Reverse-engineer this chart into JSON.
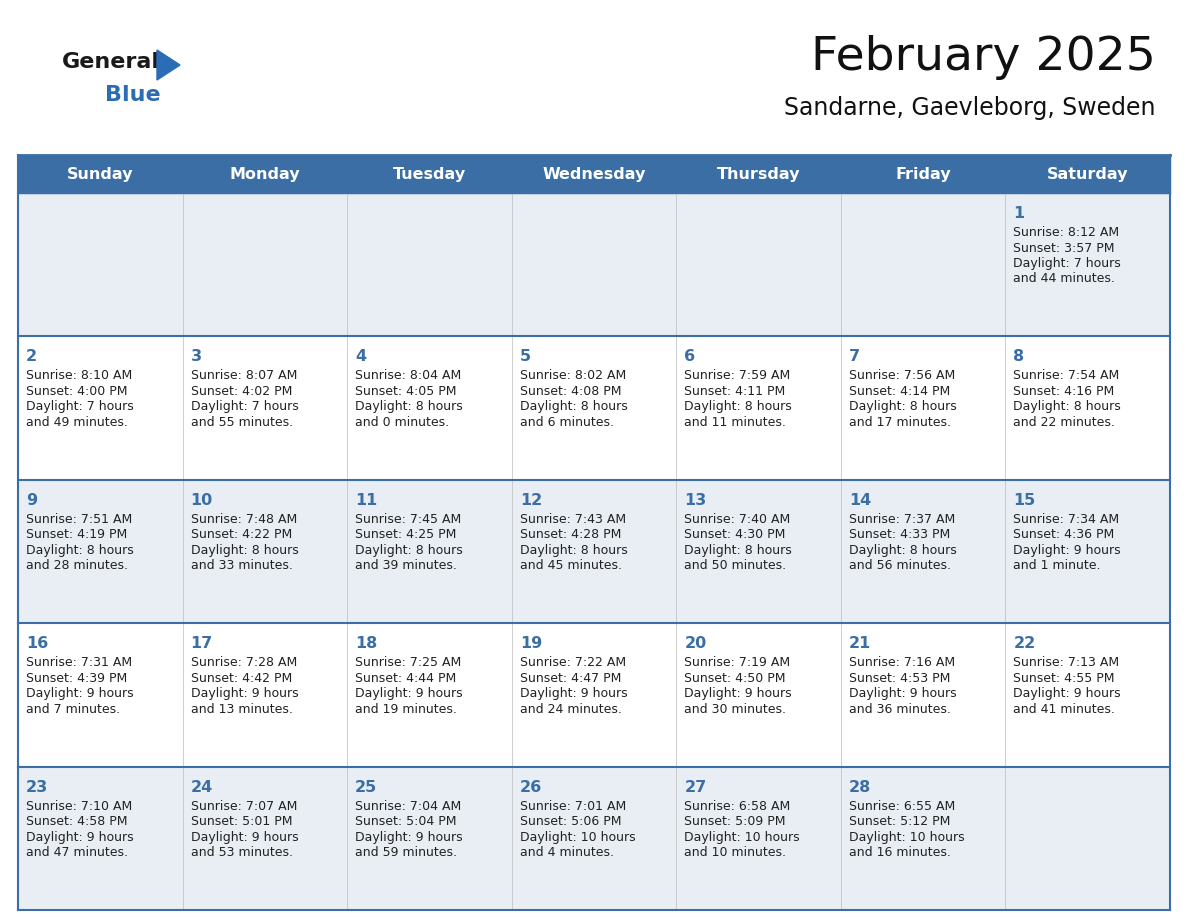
{
  "title": "February 2025",
  "subtitle": "Sandarne, Gaevleborg, Sweden",
  "days_of_week": [
    "Sunday",
    "Monday",
    "Tuesday",
    "Wednesday",
    "Thursday",
    "Friday",
    "Saturday"
  ],
  "header_bg": "#3a6ea5",
  "header_text": "#ffffff",
  "row0_bg": "#e8eef4",
  "row1_bg": "#ffffff",
  "separator_color": "#3a6ea5",
  "day_number_color": "#3a6ea5",
  "info_text_color": "#222222",
  "days": [
    {
      "date": 1,
      "col": 6,
      "row": 0,
      "sunrise": "8:12 AM",
      "sunset": "3:57 PM",
      "daylight": "7 hours",
      "daylight2": "and 44 minutes."
    },
    {
      "date": 2,
      "col": 0,
      "row": 1,
      "sunrise": "8:10 AM",
      "sunset": "4:00 PM",
      "daylight": "7 hours",
      "daylight2": "and 49 minutes."
    },
    {
      "date": 3,
      "col": 1,
      "row": 1,
      "sunrise": "8:07 AM",
      "sunset": "4:02 PM",
      "daylight": "7 hours",
      "daylight2": "and 55 minutes."
    },
    {
      "date": 4,
      "col": 2,
      "row": 1,
      "sunrise": "8:04 AM",
      "sunset": "4:05 PM",
      "daylight": "8 hours",
      "daylight2": "and 0 minutes."
    },
    {
      "date": 5,
      "col": 3,
      "row": 1,
      "sunrise": "8:02 AM",
      "sunset": "4:08 PM",
      "daylight": "8 hours",
      "daylight2": "and 6 minutes."
    },
    {
      "date": 6,
      "col": 4,
      "row": 1,
      "sunrise": "7:59 AM",
      "sunset": "4:11 PM",
      "daylight": "8 hours",
      "daylight2": "and 11 minutes."
    },
    {
      "date": 7,
      "col": 5,
      "row": 1,
      "sunrise": "7:56 AM",
      "sunset": "4:14 PM",
      "daylight": "8 hours",
      "daylight2": "and 17 minutes."
    },
    {
      "date": 8,
      "col": 6,
      "row": 1,
      "sunrise": "7:54 AM",
      "sunset": "4:16 PM",
      "daylight": "8 hours",
      "daylight2": "and 22 minutes."
    },
    {
      "date": 9,
      "col": 0,
      "row": 2,
      "sunrise": "7:51 AM",
      "sunset": "4:19 PM",
      "daylight": "8 hours",
      "daylight2": "and 28 minutes."
    },
    {
      "date": 10,
      "col": 1,
      "row": 2,
      "sunrise": "7:48 AM",
      "sunset": "4:22 PM",
      "daylight": "8 hours",
      "daylight2": "and 33 minutes."
    },
    {
      "date": 11,
      "col": 2,
      "row": 2,
      "sunrise": "7:45 AM",
      "sunset": "4:25 PM",
      "daylight": "8 hours",
      "daylight2": "and 39 minutes."
    },
    {
      "date": 12,
      "col": 3,
      "row": 2,
      "sunrise": "7:43 AM",
      "sunset": "4:28 PM",
      "daylight": "8 hours",
      "daylight2": "and 45 minutes."
    },
    {
      "date": 13,
      "col": 4,
      "row": 2,
      "sunrise": "7:40 AM",
      "sunset": "4:30 PM",
      "daylight": "8 hours",
      "daylight2": "and 50 minutes."
    },
    {
      "date": 14,
      "col": 5,
      "row": 2,
      "sunrise": "7:37 AM",
      "sunset": "4:33 PM",
      "daylight": "8 hours",
      "daylight2": "and 56 minutes."
    },
    {
      "date": 15,
      "col": 6,
      "row": 2,
      "sunrise": "7:34 AM",
      "sunset": "4:36 PM",
      "daylight": "9 hours",
      "daylight2": "and 1 minute."
    },
    {
      "date": 16,
      "col": 0,
      "row": 3,
      "sunrise": "7:31 AM",
      "sunset": "4:39 PM",
      "daylight": "9 hours",
      "daylight2": "and 7 minutes."
    },
    {
      "date": 17,
      "col": 1,
      "row": 3,
      "sunrise": "7:28 AM",
      "sunset": "4:42 PM",
      "daylight": "9 hours",
      "daylight2": "and 13 minutes."
    },
    {
      "date": 18,
      "col": 2,
      "row": 3,
      "sunrise": "7:25 AM",
      "sunset": "4:44 PM",
      "daylight": "9 hours",
      "daylight2": "and 19 minutes."
    },
    {
      "date": 19,
      "col": 3,
      "row": 3,
      "sunrise": "7:22 AM",
      "sunset": "4:47 PM",
      "daylight": "9 hours",
      "daylight2": "and 24 minutes."
    },
    {
      "date": 20,
      "col": 4,
      "row": 3,
      "sunrise": "7:19 AM",
      "sunset": "4:50 PM",
      "daylight": "9 hours",
      "daylight2": "and 30 minutes."
    },
    {
      "date": 21,
      "col": 5,
      "row": 3,
      "sunrise": "7:16 AM",
      "sunset": "4:53 PM",
      "daylight": "9 hours",
      "daylight2": "and 36 minutes."
    },
    {
      "date": 22,
      "col": 6,
      "row": 3,
      "sunrise": "7:13 AM",
      "sunset": "4:55 PM",
      "daylight": "9 hours",
      "daylight2": "and 41 minutes."
    },
    {
      "date": 23,
      "col": 0,
      "row": 4,
      "sunrise": "7:10 AM",
      "sunset": "4:58 PM",
      "daylight": "9 hours",
      "daylight2": "and 47 minutes."
    },
    {
      "date": 24,
      "col": 1,
      "row": 4,
      "sunrise": "7:07 AM",
      "sunset": "5:01 PM",
      "daylight": "9 hours",
      "daylight2": "and 53 minutes."
    },
    {
      "date": 25,
      "col": 2,
      "row": 4,
      "sunrise": "7:04 AM",
      "sunset": "5:04 PM",
      "daylight": "9 hours",
      "daylight2": "and 59 minutes."
    },
    {
      "date": 26,
      "col": 3,
      "row": 4,
      "sunrise": "7:01 AM",
      "sunset": "5:06 PM",
      "daylight": "10 hours",
      "daylight2": "and 4 minutes."
    },
    {
      "date": 27,
      "col": 4,
      "row": 4,
      "sunrise": "6:58 AM",
      "sunset": "5:09 PM",
      "daylight": "10 hours",
      "daylight2": "and 10 minutes."
    },
    {
      "date": 28,
      "col": 5,
      "row": 4,
      "sunrise": "6:55 AM",
      "sunset": "5:12 PM",
      "daylight": "10 hours",
      "daylight2": "and 16 minutes."
    }
  ]
}
